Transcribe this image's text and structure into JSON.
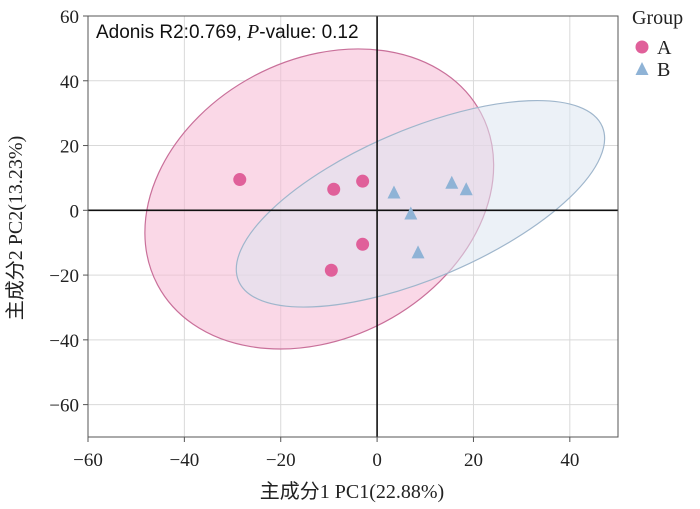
{
  "chart_data": {
    "type": "scatter",
    "xlabel": "主成分1 PC1(22.88%)",
    "ylabel": "主成分2 PC2(13.23%)",
    "xlim": [
      -60,
      50
    ],
    "ylim": [
      -70,
      60
    ],
    "xticks": [
      -60,
      -40,
      -20,
      0,
      20,
      40
    ],
    "yticks": [
      -60,
      -40,
      -20,
      0,
      20,
      40,
      60
    ],
    "grid": true,
    "annotation": {
      "prefix": "Adonis R2:0.769, ",
      "p_label": "P",
      "suffix": "-value: 0.12"
    },
    "legend": {
      "title": "Group",
      "placement": "right-top"
    },
    "series": [
      {
        "name": "A",
        "marker": "circle",
        "color": "#e0609a",
        "fill": "#f5b8d4",
        "ellipse_stroke": "#c9709a",
        "points": [
          {
            "x": -28.5,
            "y": 9.5
          },
          {
            "x": -9,
            "y": 6.5
          },
          {
            "x": -3,
            "y": 9
          },
          {
            "x": -3,
            "y": -10.5
          },
          {
            "x": -9.5,
            "y": -18.5
          }
        ],
        "ellipse": {
          "cx": -12,
          "cy": 3.5,
          "rx": 38,
          "ry": 43,
          "angle": -28
        }
      },
      {
        "name": "B",
        "marker": "triangle",
        "color": "#8fb3d6",
        "fill": "#dce6f0",
        "ellipse_stroke": "#9fb6cc",
        "points": [
          {
            "x": 3.5,
            "y": 5.5
          },
          {
            "x": 15.5,
            "y": 8.5
          },
          {
            "x": 18.5,
            "y": 6.5
          },
          {
            "x": 7,
            "y": -1
          },
          {
            "x": 8.5,
            "y": -13
          }
        ],
        "ellipse": {
          "cx": 9,
          "cy": 2,
          "rx": 41,
          "ry": 23,
          "angle": -23
        }
      }
    ]
  }
}
